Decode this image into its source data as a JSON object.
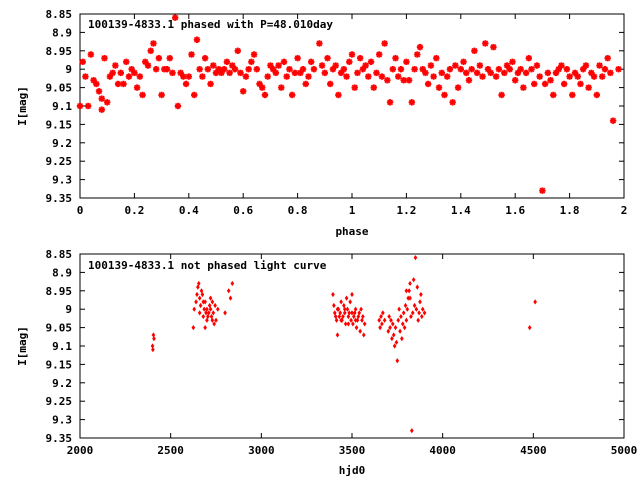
{
  "chart_data": [
    {
      "type": "scatter",
      "title": "100139-4833.1 phased with P=48.010day",
      "xlabel": "phase",
      "ylabel": "I[mag]",
      "xlim": [
        0,
        2
      ],
      "ylim": [
        8.85,
        9.35
      ],
      "y_inverted": true,
      "x_ticks": [
        "0",
        "0.2",
        "0.4",
        "0.6",
        "0.8",
        "1",
        "1.2",
        "1.4",
        "1.6",
        "1.8",
        "2"
      ],
      "y_ticks": [
        "8.85",
        "8.9",
        "8.95",
        "9",
        "9.05",
        "9.1",
        "9.15",
        "9.2",
        "9.25",
        "9.3",
        "9.35"
      ],
      "marker": "star",
      "color": "#ff0000",
      "points": [
        [
          0.0,
          9.1
        ],
        [
          0.01,
          8.98
        ],
        [
          0.02,
          9.02
        ],
        [
          0.03,
          9.1
        ],
        [
          0.04,
          8.96
        ],
        [
          0.05,
          9.03
        ],
        [
          0.06,
          9.04
        ],
        [
          0.07,
          9.06
        ],
        [
          0.08,
          9.08
        ],
        [
          0.08,
          9.11
        ],
        [
          0.09,
          8.97
        ],
        [
          0.1,
          9.09
        ],
        [
          0.11,
          9.02
        ],
        [
          0.12,
          9.01
        ],
        [
          0.13,
          8.99
        ],
        [
          0.14,
          9.04
        ],
        [
          0.15,
          9.01
        ],
        [
          0.16,
          9.04
        ],
        [
          0.17,
          8.98
        ],
        [
          0.18,
          9.02
        ],
        [
          0.19,
          9.0
        ],
        [
          0.2,
          9.01
        ],
        [
          0.21,
          9.05
        ],
        [
          0.22,
          9.02
        ],
        [
          0.23,
          9.07
        ],
        [
          0.24,
          8.98
        ],
        [
          0.25,
          8.99
        ],
        [
          0.26,
          8.95
        ],
        [
          0.27,
          8.93
        ],
        [
          0.28,
          9.0
        ],
        [
          0.29,
          8.97
        ],
        [
          0.3,
          9.07
        ],
        [
          0.31,
          9.0
        ],
        [
          0.32,
          9.0
        ],
        [
          0.33,
          8.97
        ],
        [
          0.34,
          9.01
        ],
        [
          0.35,
          8.86
        ],
        [
          0.36,
          9.1
        ],
        [
          0.37,
          9.01
        ],
        [
          0.38,
          9.02
        ],
        [
          0.39,
          9.04
        ],
        [
          0.4,
          9.02
        ],
        [
          0.41,
          8.96
        ],
        [
          0.42,
          9.07
        ],
        [
          0.43,
          8.92
        ],
        [
          0.44,
          9.0
        ],
        [
          0.45,
          9.02
        ],
        [
          0.46,
          8.97
        ],
        [
          0.47,
          9.0
        ],
        [
          0.48,
          9.04
        ],
        [
          0.49,
          8.99
        ],
        [
          0.5,
          9.01
        ],
        [
          0.51,
          9.0
        ],
        [
          0.52,
          9.01
        ],
        [
          0.53,
          9.0
        ],
        [
          0.54,
          8.98
        ],
        [
          0.55,
          9.01
        ],
        [
          0.56,
          8.99
        ],
        [
          0.57,
          9.0
        ],
        [
          0.58,
          8.95
        ],
        [
          0.59,
          9.01
        ],
        [
          0.6,
          9.06
        ],
        [
          0.61,
          9.02
        ],
        [
          0.62,
          9.0
        ],
        [
          0.63,
          8.98
        ],
        [
          0.64,
          8.96
        ],
        [
          0.65,
          9.0
        ],
        [
          0.66,
          9.04
        ],
        [
          0.67,
          9.05
        ],
        [
          0.68,
          9.07
        ],
        [
          0.69,
          9.02
        ],
        [
          0.7,
          8.99
        ],
        [
          0.71,
          9.0
        ],
        [
          0.72,
          9.01
        ],
        [
          0.73,
          8.99
        ],
        [
          0.74,
          9.05
        ],
        [
          0.75,
          8.98
        ],
        [
          0.76,
          9.02
        ],
        [
          0.77,
          9.0
        ],
        [
          0.78,
          9.07
        ],
        [
          0.79,
          9.01
        ],
        [
          0.8,
          8.97
        ],
        [
          0.81,
          9.01
        ],
        [
          0.82,
          9.0
        ],
        [
          0.83,
          9.04
        ],
        [
          0.84,
          9.02
        ],
        [
          0.85,
          8.98
        ],
        [
          0.86,
          9.0
        ],
        [
          0.88,
          8.93
        ],
        [
          0.89,
          8.99
        ],
        [
          0.9,
          9.01
        ],
        [
          0.91,
          8.97
        ],
        [
          0.92,
          9.04
        ],
        [
          0.93,
          9.0
        ],
        [
          0.94,
          8.99
        ],
        [
          0.95,
          9.07
        ],
        [
          0.96,
          9.01
        ],
        [
          0.97,
          9.0
        ],
        [
          0.98,
          9.02
        ],
        [
          0.99,
          8.98
        ],
        [
          1.0,
          8.96
        ],
        [
          1.01,
          9.05
        ],
        [
          1.02,
          9.01
        ],
        [
          1.03,
          8.97
        ],
        [
          1.04,
          9.0
        ],
        [
          1.05,
          8.99
        ],
        [
          1.06,
          9.02
        ],
        [
          1.07,
          8.98
        ],
        [
          1.08,
          9.05
        ],
        [
          1.09,
          9.01
        ],
        [
          1.1,
          8.96
        ],
        [
          1.11,
          9.02
        ],
        [
          1.12,
          8.93
        ],
        [
          1.13,
          9.03
        ],
        [
          1.14,
          9.09
        ],
        [
          1.15,
          9.0
        ],
        [
          1.16,
          8.97
        ],
        [
          1.17,
          9.02
        ],
        [
          1.18,
          9.0
        ],
        [
          1.19,
          9.03
        ],
        [
          1.2,
          8.98
        ],
        [
          1.21,
          9.03
        ],
        [
          1.22,
          9.09
        ],
        [
          1.23,
          9.0
        ],
        [
          1.24,
          8.96
        ],
        [
          1.25,
          8.94
        ],
        [
          1.26,
          9.0
        ],
        [
          1.27,
          9.01
        ],
        [
          1.28,
          9.04
        ],
        [
          1.29,
          8.99
        ],
        [
          1.3,
          9.02
        ],
        [
          1.31,
          8.97
        ],
        [
          1.32,
          9.05
        ],
        [
          1.33,
          9.01
        ],
        [
          1.34,
          9.07
        ],
        [
          1.35,
          9.02
        ],
        [
          1.36,
          9.0
        ],
        [
          1.37,
          9.09
        ],
        [
          1.38,
          8.99
        ],
        [
          1.39,
          9.05
        ],
        [
          1.4,
          9.0
        ],
        [
          1.41,
          8.98
        ],
        [
          1.42,
          9.01
        ],
        [
          1.43,
          9.03
        ],
        [
          1.44,
          9.0
        ],
        [
          1.45,
          8.95
        ],
        [
          1.46,
          9.01
        ],
        [
          1.47,
          8.99
        ],
        [
          1.48,
          9.02
        ],
        [
          1.49,
          8.93
        ],
        [
          1.5,
          9.0
        ],
        [
          1.51,
          9.01
        ],
        [
          1.52,
          8.94
        ],
        [
          1.53,
          9.02
        ],
        [
          1.54,
          9.0
        ],
        [
          1.55,
          9.07
        ],
        [
          1.56,
          9.01
        ],
        [
          1.57,
          8.99
        ],
        [
          1.58,
          9.0
        ],
        [
          1.59,
          8.98
        ],
        [
          1.6,
          9.03
        ],
        [
          1.61,
          9.01
        ],
        [
          1.62,
          9.0
        ],
        [
          1.63,
          9.05
        ],
        [
          1.64,
          9.01
        ],
        [
          1.65,
          8.97
        ],
        [
          1.66,
          9.0
        ],
        [
          1.67,
          9.04
        ],
        [
          1.68,
          8.99
        ],
        [
          1.69,
          9.02
        ],
        [
          1.7,
          9.33
        ],
        [
          1.71,
          9.04
        ],
        [
          1.72,
          9.01
        ],
        [
          1.73,
          9.03
        ],
        [
          1.74,
          9.07
        ],
        [
          1.75,
          9.01
        ],
        [
          1.76,
          9.0
        ],
        [
          1.77,
          8.99
        ],
        [
          1.78,
          9.04
        ],
        [
          1.79,
          9.0
        ],
        [
          1.8,
          9.02
        ],
        [
          1.81,
          9.07
        ],
        [
          1.82,
          9.01
        ],
        [
          1.83,
          9.02
        ],
        [
          1.84,
          9.04
        ],
        [
          1.85,
          9.0
        ],
        [
          1.86,
          8.99
        ],
        [
          1.87,
          9.05
        ],
        [
          1.88,
          9.01
        ],
        [
          1.89,
          9.02
        ],
        [
          1.9,
          9.07
        ],
        [
          1.91,
          8.99
        ],
        [
          1.92,
          9.02
        ],
        [
          1.93,
          9.0
        ],
        [
          1.94,
          8.97
        ],
        [
          1.95,
          9.01
        ],
        [
          1.96,
          9.14
        ],
        [
          1.98,
          9.0
        ]
      ]
    },
    {
      "type": "scatter",
      "title": "100139-4833.1 not phased light curve",
      "xlabel": "hjd0",
      "ylabel": "I[mag]",
      "xlim": [
        2000,
        5000
      ],
      "ylim": [
        8.85,
        9.35
      ],
      "y_inverted": true,
      "x_ticks": [
        "2000",
        "2500",
        "3000",
        "3500",
        "4000",
        "4500",
        "5000"
      ],
      "y_ticks": [
        "8.85",
        "8.9",
        "8.95",
        "9",
        "9.05",
        "9.1",
        "9.15",
        "9.2",
        "9.25",
        "9.3",
        "9.35"
      ],
      "marker": "diamond",
      "color": "#ff0000",
      "points": [
        [
          2400,
          9.1
        ],
        [
          2402,
          9.11
        ],
        [
          2405,
          9.07
        ],
        [
          2408,
          9.08
        ],
        [
          2625,
          9.05
        ],
        [
          2630,
          9.0
        ],
        [
          2640,
          8.98
        ],
        [
          2645,
          8.96
        ],
        [
          2650,
          8.94
        ],
        [
          2655,
          8.93
        ],
        [
          2660,
          8.97
        ],
        [
          2665,
          8.99
        ],
        [
          2670,
          8.95
        ],
        [
          2675,
          8.96
        ],
        [
          2680,
          8.98
        ],
        [
          2685,
          9.0
        ],
        [
          2690,
          8.98
        ],
        [
          2695,
          9.01
        ],
        [
          2700,
          9.0
        ],
        [
          2705,
          9.02
        ],
        [
          2710,
          9.01
        ],
        [
          2715,
          8.99
        ],
        [
          2720,
          9.0
        ],
        [
          2725,
          9.02
        ],
        [
          2730,
          9.03
        ],
        [
          2735,
          9.01
        ],
        [
          2740,
          9.04
        ],
        [
          2745,
          8.99
        ],
        [
          2690,
          9.05
        ],
        [
          2700,
          9.03
        ],
        [
          2720,
          8.97
        ],
        [
          2730,
          8.98
        ],
        [
          2660,
          9.01
        ],
        [
          2680,
          9.02
        ],
        [
          2750,
          9.03
        ],
        [
          2760,
          9.0
        ],
        [
          2800,
          9.01
        ],
        [
          2820,
          8.95
        ],
        [
          2830,
          8.97
        ],
        [
          2840,
          8.93
        ],
        [
          3395,
          8.96
        ],
        [
          3400,
          8.99
        ],
        [
          3405,
          9.01
        ],
        [
          3410,
          9.02
        ],
        [
          3415,
          9.03
        ],
        [
          3420,
          9.07
        ],
        [
          3425,
          9.0
        ],
        [
          3430,
          9.02
        ],
        [
          3435,
          9.01
        ],
        [
          3440,
          8.98
        ],
        [
          3445,
          9.03
        ],
        [
          3450,
          9.02
        ],
        [
          3455,
          8.99
        ],
        [
          3460,
          9.01
        ],
        [
          3465,
          9.04
        ],
        [
          3470,
          8.97
        ],
        [
          3475,
          9.0
        ],
        [
          3480,
          9.02
        ],
        [
          3485,
          9.01
        ],
        [
          3490,
          8.98
        ],
        [
          3495,
          9.03
        ],
        [
          3500,
          8.96
        ],
        [
          3505,
          9.04
        ],
        [
          3510,
          9.02
        ],
        [
          3515,
          9.01
        ],
        [
          3520,
          9.0
        ],
        [
          3525,
          9.05
        ],
        [
          3530,
          9.03
        ],
        [
          3535,
          9.02
        ],
        [
          3540,
          9.01
        ],
        [
          3545,
          9.06
        ],
        [
          3550,
          9.0
        ],
        [
          3555,
          9.03
        ],
        [
          3560,
          9.02
        ],
        [
          3565,
          9.07
        ],
        [
          3570,
          9.04
        ],
        [
          3420,
          9.0
        ],
        [
          3440,
          9.03
        ],
        [
          3460,
          9.0
        ],
        [
          3480,
          9.04
        ],
        [
          3500,
          9.01
        ],
        [
          3520,
          9.03
        ],
        [
          3650,
          9.03
        ],
        [
          3655,
          9.05
        ],
        [
          3660,
          9.02
        ],
        [
          3665,
          9.04
        ],
        [
          3670,
          9.01
        ],
        [
          3680,
          9.03
        ],
        [
          3700,
          9.06
        ],
        [
          3705,
          9.02
        ],
        [
          3710,
          9.05
        ],
        [
          3715,
          9.03
        ],
        [
          3720,
          9.08
        ],
        [
          3725,
          9.04
        ],
        [
          3730,
          9.07
        ],
        [
          3735,
          9.1
        ],
        [
          3740,
          9.05
        ],
        [
          3745,
          9.09
        ],
        [
          3750,
          9.14
        ],
        [
          3755,
          9.03
        ],
        [
          3760,
          9.0
        ],
        [
          3765,
          9.06
        ],
        [
          3770,
          9.02
        ],
        [
          3775,
          9.08
        ],
        [
          3780,
          9.04
        ],
        [
          3785,
          9.01
        ],
        [
          3790,
          9.05
        ],
        [
          3795,
          8.99
        ],
        [
          3800,
          9.03
        ],
        [
          3805,
          9.0
        ],
        [
          3810,
          8.97
        ],
        [
          3815,
          8.95
        ],
        [
          3820,
          8.93
        ],
        [
          3825,
          9.02
        ],
        [
          3830,
          9.33
        ],
        [
          3835,
          9.01
        ],
        [
          3840,
          8.92
        ],
        [
          3845,
          8.99
        ],
        [
          3850,
          8.86
        ],
        [
          3855,
          9.0
        ],
        [
          3860,
          8.94
        ],
        [
          3865,
          9.03
        ],
        [
          3870,
          9.01
        ],
        [
          3875,
          8.98
        ],
        [
          3880,
          8.96
        ],
        [
          3885,
          9.02
        ],
        [
          3890,
          9.0
        ],
        [
          3900,
          9.01
        ],
        [
          3820,
          8.97
        ],
        [
          3800,
          8.95
        ],
        [
          4480,
          9.05
        ],
        [
          4510,
          8.98
        ]
      ]
    }
  ]
}
